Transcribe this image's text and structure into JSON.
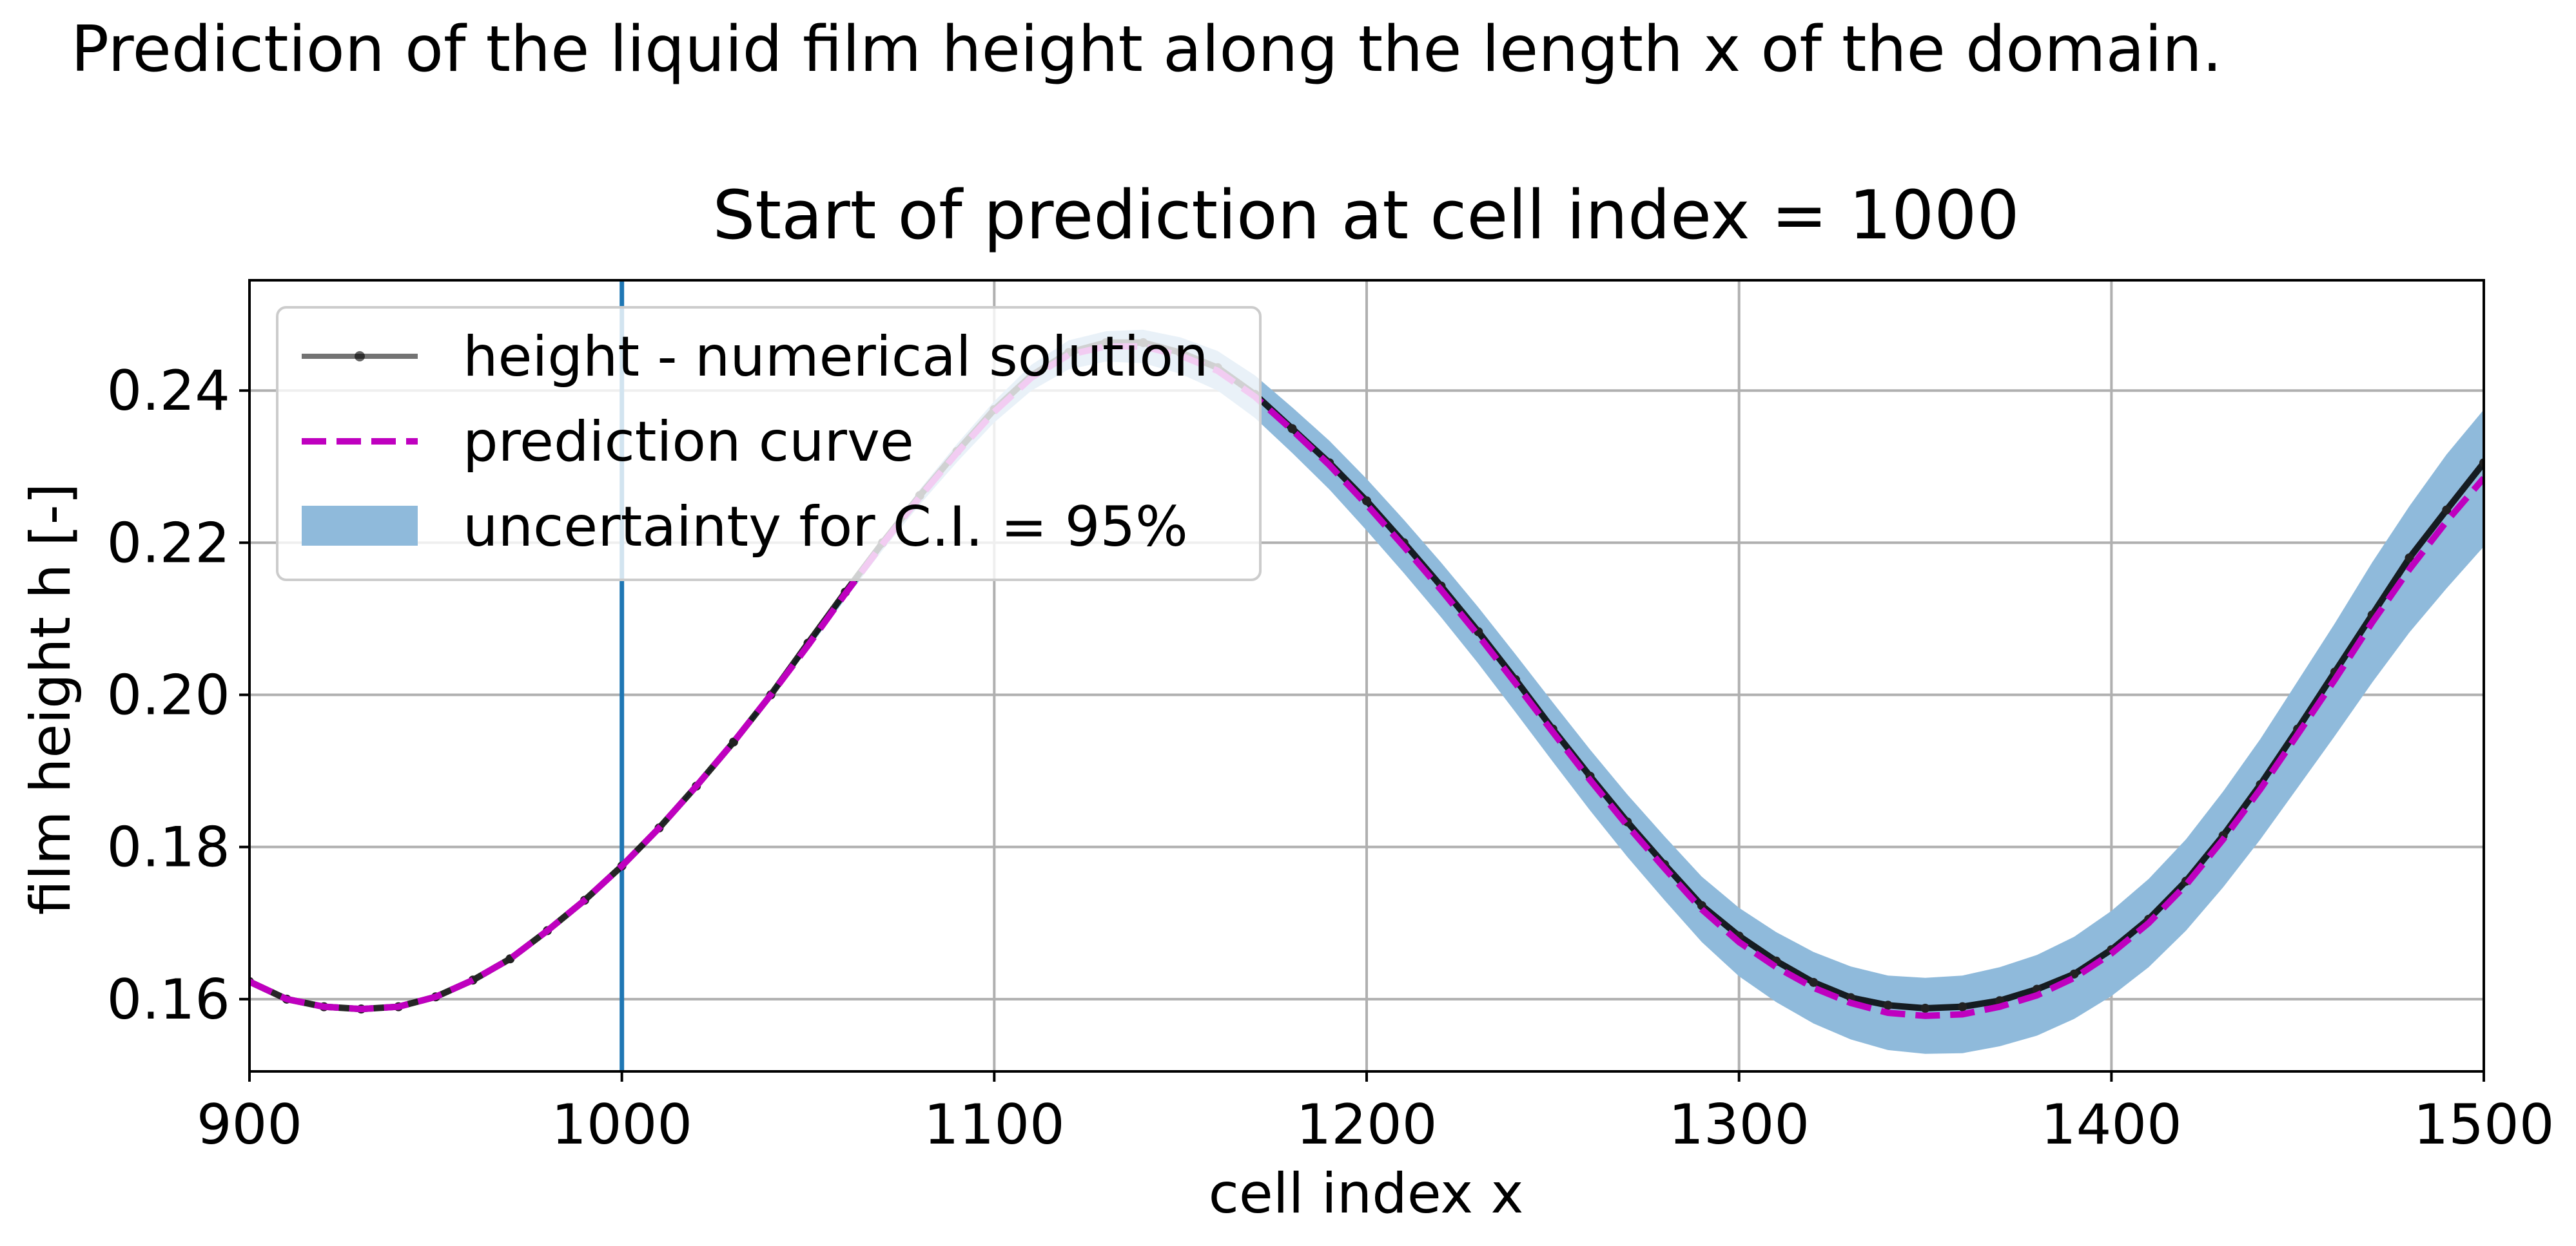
{
  "figure_title": "Prediction of the liquid film height along the length x of the domain.",
  "chart_data": {
    "type": "line",
    "title": "Start of prediction at cell index = 1000",
    "xlabel": "cell index x",
    "ylabel": "film height h [-]",
    "xlim": [
      900,
      1500
    ],
    "ylim": [
      0.1505,
      0.2545
    ],
    "xticks": [
      900,
      1000,
      1100,
      1200,
      1300,
      1400,
      1500
    ],
    "yticks": [
      0.16,
      0.18,
      0.2,
      0.22,
      0.24
    ],
    "ytick_labels": [
      "0.16",
      "0.18",
      "0.20",
      "0.22",
      "0.24"
    ],
    "grid": true,
    "legend_position": "upper-left",
    "vertical_line": {
      "x": 1000,
      "color": "#1f77b4"
    },
    "series": [
      {
        "name": "height - numerical solution",
        "color": "#000000",
        "style": "solid-with-dots",
        "x": [
          900,
          910,
          920,
          930,
          940,
          950,
          960,
          970,
          980,
          990,
          1000,
          1010,
          1020,
          1030,
          1040,
          1050,
          1060,
          1070,
          1080,
          1090,
          1100,
          1110,
          1120,
          1130,
          1140,
          1150,
          1160,
          1170,
          1180,
          1190,
          1200,
          1210,
          1220,
          1230,
          1240,
          1250,
          1260,
          1270,
          1280,
          1290,
          1300,
          1310,
          1320,
          1330,
          1340,
          1350,
          1360,
          1370,
          1380,
          1390,
          1400,
          1410,
          1420,
          1430,
          1440,
          1450,
          1460,
          1470,
          1480,
          1490,
          1500
        ],
        "y": [
          0.1623,
          0.16,
          0.159,
          0.1587,
          0.159,
          0.1603,
          0.1625,
          0.1653,
          0.169,
          0.173,
          0.1775,
          0.1825,
          0.188,
          0.1938,
          0.2,
          0.2068,
          0.2135,
          0.22,
          0.2262,
          0.232,
          0.2375,
          0.242,
          0.245,
          0.2463,
          0.2463,
          0.245,
          0.243,
          0.2395,
          0.235,
          0.2305,
          0.2255,
          0.22,
          0.2143,
          0.2083,
          0.202,
          0.1955,
          0.1893,
          0.1833,
          0.1777,
          0.1723,
          0.1683,
          0.165,
          0.1622,
          0.1602,
          0.1592,
          0.1588,
          0.159,
          0.1598,
          0.1613,
          0.1633,
          0.1665,
          0.1705,
          0.1755,
          0.1815,
          0.1882,
          0.1955,
          0.203,
          0.2105,
          0.218,
          0.2243,
          0.2305
        ]
      },
      {
        "name": "prediction curve",
        "color": "#bf00bf",
        "style": "dashed",
        "x": [
          900,
          910,
          920,
          930,
          940,
          950,
          960,
          970,
          980,
          990,
          1000,
          1010,
          1020,
          1030,
          1040,
          1050,
          1060,
          1070,
          1080,
          1090,
          1100,
          1110,
          1120,
          1130,
          1140,
          1150,
          1160,
          1170,
          1180,
          1190,
          1200,
          1210,
          1220,
          1230,
          1240,
          1250,
          1260,
          1270,
          1280,
          1290,
          1300,
          1310,
          1320,
          1330,
          1340,
          1350,
          1360,
          1370,
          1380,
          1390,
          1400,
          1410,
          1420,
          1430,
          1440,
          1450,
          1460,
          1470,
          1480,
          1490,
          1500
        ],
        "y": [
          0.1623,
          0.16,
          0.159,
          0.1587,
          0.159,
          0.1603,
          0.1625,
          0.1653,
          0.169,
          0.173,
          0.1775,
          0.1825,
          0.188,
          0.1938,
          0.2,
          0.2065,
          0.2133,
          0.2198,
          0.226,
          0.2318,
          0.2372,
          0.2417,
          0.2447,
          0.2458,
          0.2458,
          0.2446,
          0.2426,
          0.2392,
          0.2348,
          0.2302,
          0.225,
          0.2195,
          0.2138,
          0.2078,
          0.2015,
          0.1951,
          0.1888,
          0.1828,
          0.1772,
          0.1718,
          0.1675,
          0.1642,
          0.1615,
          0.1595,
          0.1582,
          0.1578,
          0.158,
          0.159,
          0.1605,
          0.1628,
          0.166,
          0.17,
          0.175,
          0.181,
          0.1876,
          0.1948,
          0.202,
          0.2095,
          0.2165,
          0.2228,
          0.2285
        ]
      },
      {
        "name": "uncertainty for C.I. = 95%",
        "color": "#8fbadb",
        "style": "band",
        "x": [
          1000,
          1010,
          1020,
          1030,
          1040,
          1050,
          1060,
          1070,
          1080,
          1090,
          1100,
          1110,
          1120,
          1130,
          1140,
          1150,
          1160,
          1170,
          1180,
          1190,
          1200,
          1210,
          1220,
          1230,
          1240,
          1250,
          1260,
          1270,
          1280,
          1290,
          1300,
          1310,
          1320,
          1330,
          1340,
          1350,
          1360,
          1370,
          1380,
          1390,
          1400,
          1410,
          1420,
          1430,
          1440,
          1450,
          1460,
          1470,
          1480,
          1490,
          1500
        ],
        "lower": [
          0.1775,
          0.1824,
          0.1878,
          0.1935,
          0.1996,
          0.206,
          0.2126,
          0.219,
          0.225,
          0.2306,
          0.2358,
          0.24,
          0.2428,
          0.2438,
          0.2436,
          0.2422,
          0.24,
          0.2364,
          0.2318,
          0.227,
          0.2216,
          0.216,
          0.2102,
          0.2041,
          0.1977,
          0.1912,
          0.1848,
          0.1787,
          0.173,
          0.1675,
          0.163,
          0.1596,
          0.1568,
          0.1547,
          0.1533,
          0.1528,
          0.1529,
          0.1538,
          0.1552,
          0.1574,
          0.1604,
          0.1642,
          0.169,
          0.1747,
          0.181,
          0.1878,
          0.1946,
          0.2016,
          0.2082,
          0.214,
          0.2195
        ],
        "upper": [
          0.1775,
          0.1826,
          0.1882,
          0.1941,
          0.2004,
          0.207,
          0.214,
          0.2206,
          0.227,
          0.233,
          0.2386,
          0.2434,
          0.2466,
          0.2478,
          0.248,
          0.247,
          0.2452,
          0.242,
          0.2378,
          0.2334,
          0.2284,
          0.223,
          0.2174,
          0.2115,
          0.2053,
          0.199,
          0.1928,
          0.1869,
          0.1814,
          0.1761,
          0.172,
          0.1688,
          0.1662,
          0.1643,
          0.1631,
          0.1628,
          0.1631,
          0.1642,
          0.1658,
          0.1682,
          0.1716,
          0.1758,
          0.181,
          0.1873,
          0.1942,
          0.2018,
          0.2094,
          0.2174,
          0.2248,
          0.2316,
          0.2375
        ]
      }
    ]
  }
}
